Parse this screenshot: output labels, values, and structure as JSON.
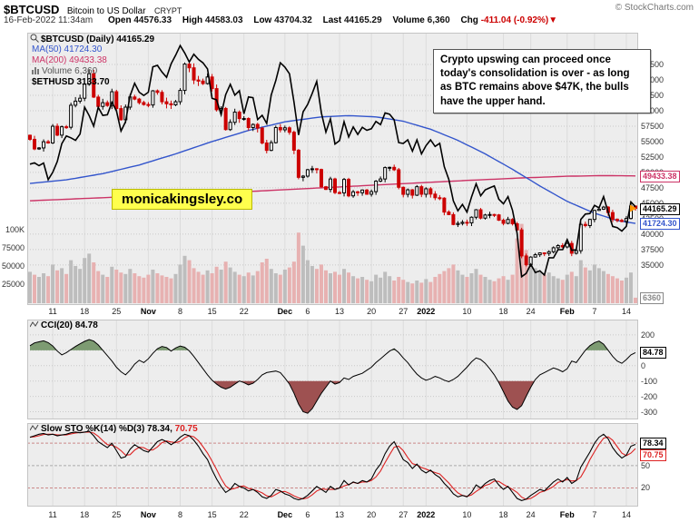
{
  "header": {
    "symbol": "$BTCUSD",
    "name": "Bitcoin to US Dollar",
    "exchange": "CRYPT",
    "copyright": "© StockCharts.com",
    "datetime": "16-Feb-2022 11:34am",
    "quote": {
      "open_label": "Open",
      "open": "44576.33",
      "high_label": "High",
      "high": "44583.03",
      "low_label": "Low",
      "low": "43704.32",
      "last_label": "Last",
      "last": "44165.29",
      "volume_label": "Volume",
      "volume": "6,360",
      "chg_label": "Chg",
      "chg": "-411.04 (-0.92%)",
      "chg_dir": "▼"
    }
  },
  "legend": {
    "main": "$BTCUSD (Daily) 44165.29",
    "ma50": "MA(50) 41724.30",
    "ma200": "MA(200) 49433.38",
    "volume": "Volume 6,360",
    "eth": "$ETHUSD 3133.70",
    "cci": "CCI(20) 84.78",
    "sto_k": "Slow STO %K(14) %D(3) 78.34,",
    "sto_d": "70.75"
  },
  "annotations": {
    "watermark": "monicakingsley.co",
    "callout": "Crypto upswing can proceed once today's consolidation is over - as long as BTC remains above $47K, the bulls have the upper hand."
  },
  "colors": {
    "up": "#000000",
    "down": "#cc0000",
    "ma50": "#3355cc",
    "ma200": "#cc3366",
    "eth": "#000000",
    "vol_up": "#bdbdbd",
    "vol_down": "#e7b1b1",
    "cci_line": "#000000",
    "cci_pos": "#7d9b72",
    "cci_neg": "#9e5151",
    "sto_k": "#000000",
    "sto_d": "#dd2222",
    "accent_last": "#ff9900",
    "panel_bg": "#ededed",
    "grid": "#c9c9c9"
  },
  "chart_data": {
    "type": "candlestick",
    "title": "$BTCUSD (Daily)",
    "x_ticks": [
      {
        "i": 5,
        "label": "11"
      },
      {
        "i": 12,
        "label": "18"
      },
      {
        "i": 19,
        "label": "25"
      },
      {
        "i": 26,
        "label": "Nov"
      },
      {
        "i": 33,
        "label": "8"
      },
      {
        "i": 40,
        "label": "15"
      },
      {
        "i": 47,
        "label": "22"
      },
      {
        "i": 56,
        "label": "Dec"
      },
      {
        "i": 61,
        "label": "6"
      },
      {
        "i": 68,
        "label": "13"
      },
      {
        "i": 75,
        "label": "20"
      },
      {
        "i": 82,
        "label": "27"
      },
      {
        "i": 87,
        "label": "2022"
      },
      {
        "i": 96,
        "label": "10"
      },
      {
        "i": 104,
        "label": "18"
      },
      {
        "i": 110,
        "label": "24"
      },
      {
        "i": 118,
        "label": "Feb"
      },
      {
        "i": 124,
        "label": "7"
      },
      {
        "i": 131,
        "label": "14"
      }
    ],
    "panels": {
      "price": {
        "ylim": [
          28500,
          72650
        ],
        "y_ticks": [
          67500,
          65000,
          62500,
          60000,
          57500,
          55000,
          52500,
          50000,
          47500,
          45000,
          42500,
          40000,
          37500,
          35000
        ],
        "btc_close": [
          55361,
          53805,
          53967,
          54968,
          54771,
          57484,
          56041,
          57401,
          57321,
          60892,
          61553,
          62026,
          64287,
          66002,
          62210,
          60692,
          61300,
          60850,
          63078,
          60345,
          58539,
          60582,
          62227,
          61888,
          61318,
          61004,
          60930,
          63226,
          62970,
          61452,
          61125,
          60952,
          61460,
          63293,
          67562,
          66954,
          64976,
          64800,
          64400,
          65468,
          63584,
          60161,
          60368,
          56942,
          58119,
          59777,
          58730,
          58735,
          57274,
          57776,
          57184,
          54771,
          53569,
          54815,
          57274,
          56907,
          57229,
          56508,
          53601,
          49200,
          49396,
          50441,
          50588,
          50471,
          47672,
          47243,
          48936,
          46733,
          46681,
          48864,
          46202,
          46848,
          46707,
          47145,
          46464,
          46880,
          48587,
          48936,
          50784,
          50822,
          50429,
          47588,
          46444,
          47178,
          46306,
          47686,
          46458,
          47345,
          46486,
          45897,
          45832,
          43569,
          43160,
          41557,
          41733,
          41911,
          41821,
          42735,
          43949,
          42591,
          43099,
          43177,
          43113,
          42250,
          41744,
          42375,
          41679,
          40680,
          36457,
          35030,
          36276,
          36654,
          36954,
          36852,
          37138,
          37784,
          38138,
          37917,
          38483,
          36896,
          37311,
          41574,
          41382,
          42380,
          43840,
          44042,
          44372,
          43495,
          42373,
          42217,
          42053,
          42535,
          44544,
          44165.29
        ],
        "eth_close": [
          3577,
          3590,
          3561,
          3588,
          3415,
          3492,
          3604,
          3790,
          3870,
          3850,
          3824,
          3890,
          4170,
          4082,
          3971,
          4168,
          4084,
          4090,
          4220,
          4130,
          3920,
          4018,
          4288,
          4418,
          4324,
          4290,
          4324,
          4589,
          4604,
          4535,
          4479,
          4620,
          4710,
          4810,
          4732,
          4639,
          4720,
          4666,
          4630,
          4567,
          4261,
          4245,
          4090,
          4300,
          4407,
          4294,
          4340,
          4100,
          4275,
          4268,
          4040,
          4085,
          4000,
          4297,
          4445,
          4631,
          4586,
          4516,
          4220,
          3880,
          4120,
          4198,
          4312,
          4437,
          4110,
          3910,
          4048,
          3785,
          3821,
          4018,
          3859,
          3964,
          3885,
          3960,
          3929,
          3945,
          4020,
          3987,
          4110,
          4096,
          4037,
          3800,
          3792,
          3830,
          3712,
          3829,
          3683,
          3769,
          3829,
          3761,
          3794,
          3550,
          3418,
          3194,
          3091,
          3157,
          3078,
          3238,
          3372,
          3248,
          3309,
          3330,
          3350,
          3212,
          3164,
          3239,
          3095,
          2858,
          2406,
          2440,
          2535,
          2449,
          2467,
          2423,
          2603,
          2602,
          2687,
          2688,
          2792,
          2681,
          2687,
          3002,
          3057,
          3063,
          3148,
          3122,
          3239,
          3076,
          2929,
          2917,
          2881,
          2930,
          3184,
          3133.7
        ],
        "eth_scale": {
          "from": [
            2400,
            4870
          ],
          "to": [
            33000,
            71500
          ]
        },
        "ma50_anchors": [
          [
            0,
            48200
          ],
          [
            8,
            48800
          ],
          [
            16,
            49800
          ],
          [
            24,
            51200
          ],
          [
            32,
            53000
          ],
          [
            40,
            55000
          ],
          [
            48,
            56800
          ],
          [
            56,
            58200
          ],
          [
            64,
            59000
          ],
          [
            70,
            59200
          ],
          [
            76,
            59000
          ],
          [
            82,
            58300
          ],
          [
            88,
            57000
          ],
          [
            94,
            55200
          ],
          [
            100,
            53000
          ],
          [
            106,
            50500
          ],
          [
            112,
            47800
          ],
          [
            118,
            45300
          ],
          [
            124,
            43400
          ],
          [
            129,
            42200
          ],
          [
            133,
            41724.3
          ]
        ],
        "ma200_anchors": [
          [
            0,
            45400
          ],
          [
            16,
            45900
          ],
          [
            32,
            46400
          ],
          [
            48,
            46900
          ],
          [
            64,
            47500
          ],
          [
            80,
            48100
          ],
          [
            96,
            48700
          ],
          [
            108,
            49100
          ],
          [
            118,
            49380
          ],
          [
            126,
            49480
          ],
          [
            133,
            49433.38
          ]
        ],
        "volume": [
          42000,
          38000,
          35000,
          40000,
          36000,
          52000,
          44000,
          47000,
          39000,
          58000,
          50000,
          46000,
          61000,
          67000,
          55000,
          43000,
          38000,
          35000,
          49000,
          45000,
          41000,
          39000,
          46000,
          40000,
          36000,
          34000,
          38000,
          45000,
          40000,
          37000,
          35000,
          33000,
          39000,
          52000,
          64000,
          58000,
          47000,
          42000,
          38000,
          44000,
          40000,
          49000,
          45000,
          56000,
          48000,
          42000,
          38000,
          36000,
          41000,
          37000,
          43000,
          55000,
          60000,
          46000,
          40000,
          38000,
          45000,
          48000,
          56000,
          96000,
          78000,
          58000,
          50000,
          46000,
          52000,
          44000,
          40000,
          42000,
          38000,
          46000,
          41000,
          36000,
          33000,
          35000,
          31000,
          29000,
          38000,
          34000,
          42000,
          36000,
          30000,
          35000,
          31000,
          28000,
          26000,
          30000,
          27000,
          32000,
          28000,
          35000,
          39000,
          43000,
          47000,
          52000,
          44000,
          38000,
          35000,
          40000,
          46000,
          38000,
          35000,
          31000,
          29000,
          33000,
          36000,
          31000,
          38000,
          88000,
          108000,
          72000,
          55000,
          47000,
          42000,
          38000,
          41000,
          36000,
          33000,
          31000,
          38000,
          42000,
          36000,
          58000,
          48000,
          44000,
          52000,
          47000,
          43000,
          39000,
          36000,
          33000,
          30000,
          34000,
          41000,
          6360
        ],
        "volume_scale": {
          "max_value": 100000,
          "labels": [
            "100K",
            "75000",
            "50000",
            "25000"
          ],
          "label_values": [
            100000,
            75000,
            50000,
            25000
          ]
        },
        "badges": [
          {
            "label": "49433.38",
            "value": 49433.38,
            "color": "#cc3366",
            "dy": 0
          },
          {
            "label": "44165.29",
            "value": 44165.29,
            "color": "#000000",
            "dy": 0
          },
          {
            "label": "41724.30",
            "value": 41724.3,
            "color": "#3355cc",
            "dy": 0
          }
        ],
        "volume_badge": {
          "label": "6360",
          "value": 6360,
          "color": "#888888"
        }
      },
      "cci": {
        "ylim": [
          -350,
          300
        ],
        "y_ticks": [
          200,
          100,
          0,
          -100,
          -200,
          -300
        ],
        "thresholds": [
          100,
          -100
        ],
        "values": [
          130,
          148,
          155,
          162,
          150,
          128,
          95,
          70,
          85,
          105,
          125,
          142,
          158,
          170,
          160,
          135,
          100,
          65,
          30,
          -10,
          -40,
          -60,
          -30,
          10,
          35,
          20,
          45,
          80,
          110,
          125,
          118,
          95,
          115,
          128,
          120,
          96,
          60,
          20,
          -20,
          -60,
          -95,
          -120,
          -140,
          -152,
          -140,
          -120,
          -100,
          -110,
          -125,
          -115,
          -90,
          -60,
          -45,
          -40,
          -35,
          -45,
          -80,
          -120,
          -180,
          -250,
          -300,
          -310,
          -280,
          -230,
          -180,
          -140,
          -100,
          -120,
          -110,
          -80,
          -90,
          -70,
          -60,
          -50,
          -30,
          -10,
          20,
          45,
          70,
          95,
          110,
          85,
          50,
          20,
          -20,
          -55,
          -80,
          -95,
          -85,
          -70,
          -80,
          -95,
          -105,
          -90,
          -70,
          -40,
          -10,
          25,
          50,
          40,
          15,
          -20,
          -60,
          -110,
          -170,
          -230,
          -270,
          -285,
          -260,
          -200,
          -140,
          -90,
          -60,
          -45,
          -30,
          -15,
          -25,
          -40,
          -20,
          30,
          20,
          60,
          100,
          130,
          150,
          160,
          140,
          100,
          60,
          30,
          15,
          40,
          70,
          84.78
        ],
        "badges": [
          {
            "label": "84.78",
            "value": 84.78,
            "color": "#000000",
            "dy": 0
          }
        ]
      },
      "sto": {
        "ylim": [
          -5,
          107
        ],
        "y_ticks": [
          80,
          50,
          20
        ],
        "k": [
          88,
          90,
          92,
          93,
          91,
          92,
          90,
          91,
          92,
          94,
          95,
          94,
          95,
          96,
          90,
          82,
          78,
          74,
          80,
          70,
          60,
          62,
          72,
          78,
          74,
          70,
          68,
          75,
          82,
          85,
          82,
          78,
          82,
          88,
          92,
          90,
          84,
          76,
          66,
          58,
          44,
          32,
          22,
          14,
          18,
          26,
          22,
          20,
          16,
          18,
          14,
          8,
          6,
          10,
          18,
          16,
          12,
          10,
          6,
          4,
          6,
          10,
          16,
          22,
          18,
          14,
          22,
          18,
          20,
          30,
          24,
          28,
          26,
          30,
          28,
          32,
          44,
          52,
          66,
          76,
          82,
          70,
          58,
          54,
          46,
          52,
          44,
          40,
          44,
          38,
          34,
          26,
          20,
          12,
          8,
          10,
          8,
          14,
          24,
          20,
          26,
          30,
          32,
          24,
          18,
          22,
          14,
          6,
          3,
          5,
          10,
          14,
          18,
          16,
          22,
          28,
          32,
          28,
          34,
          26,
          30,
          48,
          58,
          68,
          80,
          88,
          92,
          86,
          74,
          66,
          60,
          64,
          76,
          78.34
        ],
        "badges": [
          {
            "label": "78.34",
            "value": 78.34,
            "color": "#000000",
            "dy": -2
          },
          {
            "label": "70.75",
            "value": 70.75,
            "color": "#dd2222",
            "dy": 5
          }
        ]
      }
    }
  }
}
